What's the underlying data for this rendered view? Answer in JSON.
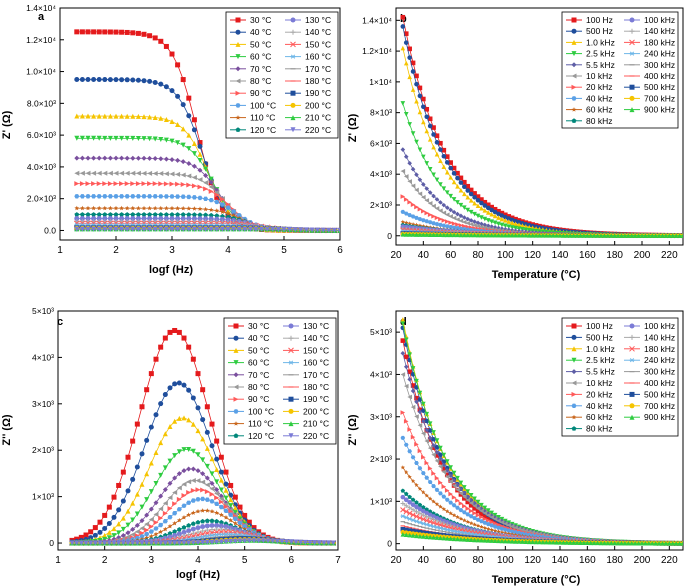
{
  "figure": {
    "panels": [
      {
        "label": "a",
        "xlabel": "logf (Hz)",
        "ylabel": "Z' (Ω)"
      },
      {
        "label": "b",
        "xlabel": "Temperature (°C)",
        "ylabel": "Z' (Ω)"
      },
      {
        "label": "c",
        "xlabel": "logf (Hz)",
        "ylabel": "Z'' (Ω)"
      },
      {
        "label": "d",
        "xlabel": "Temperature (°C)",
        "ylabel": "Z'' (Ω)"
      }
    ]
  },
  "chart_data": [
    {
      "type": "line",
      "panel": "a",
      "title": "a",
      "xlabel": "logf (Hz)",
      "ylabel": "Z' (Ω)",
      "xlim": [
        1,
        6
      ],
      "ylim": [
        -600,
        14000
      ],
      "xticks": [
        1,
        2,
        3,
        4,
        5,
        6
      ],
      "xtick_labels": [
        "1",
        "2",
        "3",
        "4",
        "5",
        "6"
      ],
      "yticks": [
        0,
        2000,
        4000,
        6000,
        8000,
        10000,
        12000,
        14000
      ],
      "ytick_labels": [
        "0.0",
        "2.0×10³",
        "4.0×10³",
        "6.0×10³",
        "8.0×10³",
        "1.0×10⁴",
        "1.2×10⁴",
        "1.4×10⁴"
      ],
      "legend_position": "top-right",
      "legend_cols": 2,
      "model": "Z' = Z0 / (1 + 10^(2·(logf − fc))) sampled from logf 1.3 to 6.0",
      "series": [
        {
          "name": "30 °C",
          "color": "#e41a1c",
          "marker": "square",
          "z0": 12500,
          "fc": 3.45
        },
        {
          "name": "40 °C",
          "color": "#1f4e9c",
          "marker": "circle",
          "z0": 9500,
          "fc": 3.55
        },
        {
          "name": "50 °C",
          "color": "#f5c400",
          "marker": "triangle",
          "z0": 7200,
          "fc": 3.65
        },
        {
          "name": "60 °C",
          "color": "#2ecc40",
          "marker": "tri-down",
          "z0": 5800,
          "fc": 3.75
        },
        {
          "name": "70 °C",
          "color": "#7a4f9e",
          "marker": "diamond",
          "z0": 4550,
          "fc": 3.85
        },
        {
          "name": "80 °C",
          "color": "#999999",
          "marker": "tri-left",
          "z0": 3600,
          "fc": 3.95
        },
        {
          "name": "90 °C",
          "color": "#ff5a5a",
          "marker": "tri-right",
          "z0": 2950,
          "fc": 4.05
        },
        {
          "name": "100 °C",
          "color": "#5aa0e6",
          "marker": "hexagon",
          "z0": 2150,
          "fc": 4.15
        },
        {
          "name": "110 °C",
          "color": "#c8651b",
          "marker": "star",
          "z0": 1400,
          "fc": 4.25
        },
        {
          "name": "120 °C",
          "color": "#00877a",
          "marker": "pentagon",
          "z0": 1000,
          "fc": 4.35
        },
        {
          "name": "130 °C",
          "color": "#7b7bd6",
          "marker": "circle",
          "z0": 750,
          "fc": 4.45
        },
        {
          "name": "140 °C",
          "color": "#aaaaaa",
          "marker": "plus",
          "z0": 560,
          "fc": 4.55
        },
        {
          "name": "150 °C",
          "color": "#ff5a5a",
          "marker": "cross",
          "z0": 450,
          "fc": 4.65
        },
        {
          "name": "160 °C",
          "color": "#6fb7e8",
          "marker": "asterisk",
          "z0": 350,
          "fc": 4.75
        },
        {
          "name": "170 °C",
          "color": "#999999",
          "marker": "line",
          "z0": 270,
          "fc": 4.85
        },
        {
          "name": "180 °C",
          "color": "#ff5a5a",
          "marker": "line",
          "z0": 210,
          "fc": 4.95
        },
        {
          "name": "190 °C",
          "color": "#1f4e9c",
          "marker": "square",
          "z0": 160,
          "fc": 5.05
        },
        {
          "name": "200 °C",
          "color": "#f5c400",
          "marker": "circle",
          "z0": 130,
          "fc": 5.15
        },
        {
          "name": "210 °C",
          "color": "#2ecc40",
          "marker": "triangle",
          "z0": 100,
          "fc": 5.25
        },
        {
          "name": "220 °C",
          "color": "#7b7bd6",
          "marker": "tri-down",
          "z0": 80,
          "fc": 5.35
        }
      ]
    },
    {
      "type": "line",
      "panel": "b",
      "title": "b",
      "xlabel": "Temperature (°C)",
      "ylabel": "Z' (Ω)",
      "xlim": [
        20,
        230
      ],
      "ylim": [
        -600,
        14800
      ],
      "xticks": [
        20,
        40,
        60,
        80,
        100,
        120,
        140,
        160,
        180,
        200,
        220
      ],
      "xtick_labels": [
        "20",
        "40",
        "60",
        "80",
        "100",
        "120",
        "140",
        "160",
        "180",
        "200",
        "220"
      ],
      "yticks": [
        0,
        2000,
        4000,
        6000,
        8000,
        10000,
        12000,
        14000
      ],
      "ytick_labels": [
        "0",
        "2×10³",
        "4×10³",
        "6×10³",
        "8×10³",
        "1×10⁴",
        "1.2×10⁴",
        "1.4×10⁴"
      ],
      "legend_position": "top-right",
      "legend_cols": 2,
      "model": "Z' = Z0 · exp(−(T − 25)/tau) sampled from T = 25 to 230",
      "series": [
        {
          "name": "100 Hz",
          "color": "#e41a1c",
          "marker": "square",
          "z0": 14200,
          "tau": 32
        },
        {
          "name": "500 Hz",
          "color": "#1f4e9c",
          "marker": "circle",
          "z0": 13600,
          "tau": 31
        },
        {
          "name": "1.0 kHz",
          "color": "#f5c400",
          "marker": "triangle",
          "z0": 12200,
          "tau": 30
        },
        {
          "name": "2.5 kHz",
          "color": "#2ecc40",
          "marker": "tri-down",
          "z0": 8600,
          "tau": 29
        },
        {
          "name": "5.5 kHz",
          "color": "#5e5ea6",
          "marker": "diamond",
          "z0": 5600,
          "tau": 29
        },
        {
          "name": "10 kHz",
          "color": "#999999",
          "marker": "tri-left",
          "z0": 4200,
          "tau": 29
        },
        {
          "name": "20 kHz",
          "color": "#ff5a5a",
          "marker": "tri-right",
          "z0": 2550,
          "tau": 32
        },
        {
          "name": "40 kHz",
          "color": "#5aa0e6",
          "marker": "hexagon",
          "z0": 1550,
          "tau": 35
        },
        {
          "name": "60 kHz",
          "color": "#c8651b",
          "marker": "star",
          "z0": 900,
          "tau": 40
        },
        {
          "name": "80 kHz",
          "color": "#00877a",
          "marker": "pentagon",
          "z0": 700,
          "tau": 45
        },
        {
          "name": "100 kHz",
          "color": "#7b7bd6",
          "marker": "circle",
          "z0": 600,
          "tau": 50
        },
        {
          "name": "140 kHz",
          "color": "#aaaaaa",
          "marker": "plus",
          "z0": 450,
          "tau": 55
        },
        {
          "name": "180 kHz",
          "color": "#ff5a5a",
          "marker": "cross",
          "z0": 380,
          "tau": 60
        },
        {
          "name": "240 kHz",
          "color": "#6fb7e8",
          "marker": "asterisk",
          "z0": 300,
          "tau": 65
        },
        {
          "name": "300 kHz",
          "color": "#999999",
          "marker": "line",
          "z0": 240,
          "tau": 70
        },
        {
          "name": "400 kHz",
          "color": "#ff5a5a",
          "marker": "line",
          "z0": 190,
          "tau": 75
        },
        {
          "name": "500 kHz",
          "color": "#1f4e9c",
          "marker": "square",
          "z0": 150,
          "tau": 80
        },
        {
          "name": "700 kHz",
          "color": "#f5c400",
          "marker": "circle",
          "z0": 110,
          "tau": 85
        },
        {
          "name": "900 kHz",
          "color": "#2ecc40",
          "marker": "triangle",
          "z0": 90,
          "tau": 90
        }
      ]
    },
    {
      "type": "line",
      "panel": "c",
      "title": "c",
      "xlabel": "logf (Hz)",
      "ylabel": "Z'' (Ω)",
      "xlim": [
        1,
        7
      ],
      "ylim": [
        -150,
        5000
      ],
      "xticks": [
        1,
        2,
        3,
        4,
        5,
        6,
        7
      ],
      "xtick_labels": [
        "1",
        "2",
        "3",
        "4",
        "5",
        "6",
        "7"
      ],
      "yticks": [
        0,
        1000,
        2000,
        3000,
        4000,
        5000
      ],
      "ytick_labels": [
        "0",
        "1×10³",
        "2×10³",
        "3×10³",
        "4×10³",
        "5×10³"
      ],
      "legend_position": "top-right",
      "legend_cols": 2,
      "model": "Z'' = peak · exp(−((logf − center)/width)²) sampled from logf 1.3 to 6.9",
      "series": [
        {
          "name": "30 °C",
          "color": "#e41a1c",
          "marker": "square",
          "peak": 4580,
          "center": 3.5,
          "width": 1.05
        },
        {
          "name": "40 °C",
          "color": "#1f4e9c",
          "marker": "circle",
          "peak": 3450,
          "center": 3.58,
          "width": 1.02
        },
        {
          "name": "50 °C",
          "color": "#f5c400",
          "marker": "triangle",
          "peak": 2700,
          "center": 3.67,
          "width": 1.0
        },
        {
          "name": "60 °C",
          "color": "#2ecc40",
          "marker": "tri-down",
          "peak": 2020,
          "center": 3.76,
          "width": 0.98
        },
        {
          "name": "70 °C",
          "color": "#7a4f9e",
          "marker": "diamond",
          "peak": 1600,
          "center": 3.85,
          "width": 0.96
        },
        {
          "name": "80 °C",
          "color": "#999999",
          "marker": "tri-left",
          "peak": 1350,
          "center": 3.94,
          "width": 0.95
        },
        {
          "name": "90 °C",
          "color": "#ff5a5a",
          "marker": "tri-right",
          "peak": 1150,
          "center": 4.02,
          "width": 0.94
        },
        {
          "name": "100 °C",
          "color": "#5aa0e6",
          "marker": "hexagon",
          "peak": 950,
          "center": 4.08,
          "width": 0.93
        },
        {
          "name": "110 °C",
          "color": "#c8651b",
          "marker": "star",
          "peak": 700,
          "center": 4.15,
          "width": 0.92
        },
        {
          "name": "120 °C",
          "color": "#00877a",
          "marker": "pentagon",
          "peak": 480,
          "center": 4.25,
          "width": 0.92
        },
        {
          "name": "130 °C",
          "color": "#7b7bd6",
          "marker": "circle",
          "peak": 380,
          "center": 4.35,
          "width": 0.92
        },
        {
          "name": "140 °C",
          "color": "#aaaaaa",
          "marker": "plus",
          "peak": 300,
          "center": 4.45,
          "width": 0.92
        },
        {
          "name": "150 °C",
          "color": "#ff5a5a",
          "marker": "cross",
          "peak": 240,
          "center": 4.55,
          "width": 0.92
        },
        {
          "name": "160 °C",
          "color": "#6fb7e8",
          "marker": "asterisk",
          "peak": 190,
          "center": 4.65,
          "width": 0.92
        },
        {
          "name": "170 °C",
          "color": "#999999",
          "marker": "line",
          "peak": 150,
          "center": 4.75,
          "width": 0.92
        },
        {
          "name": "180 °C",
          "color": "#ff5a5a",
          "marker": "line",
          "peak": 120,
          "center": 4.85,
          "width": 0.92
        },
        {
          "name": "190 °C",
          "color": "#1f4e9c",
          "marker": "square",
          "peak": 95,
          "center": 4.95,
          "width": 0.92
        },
        {
          "name": "200 °C",
          "color": "#f5c400",
          "marker": "circle",
          "peak": 75,
          "center": 5.05,
          "width": 0.92
        },
        {
          "name": "210 °C",
          "color": "#2ecc40",
          "marker": "triangle",
          "peak": 60,
          "center": 5.15,
          "width": 0.92
        },
        {
          "name": "220 °C",
          "color": "#7b7bd6",
          "marker": "tri-down",
          "peak": 50,
          "center": 5.25,
          "width": 0.92
        }
      ]
    },
    {
      "type": "line",
      "panel": "d",
      "title": "d",
      "xlabel": "Temperature (°C)",
      "ylabel": "Z'' (Ω)",
      "xlim": [
        20,
        230
      ],
      "ylim": [
        -150,
        5500
      ],
      "xticks": [
        20,
        40,
        60,
        80,
        100,
        120,
        140,
        160,
        180,
        200,
        220
      ],
      "xtick_labels": [
        "20",
        "40",
        "60",
        "80",
        "100",
        "120",
        "140",
        "160",
        "180",
        "200",
        "220"
      ],
      "yticks": [
        0,
        1000,
        2000,
        3000,
        4000,
        5000
      ],
      "ytick_labels": [
        "0",
        "1×10³",
        "2×10³",
        "3×10³",
        "4×10³",
        "5×10³"
      ],
      "legend_position": "top-right",
      "legend_cols": 2,
      "model": "Z'' = Z0 · exp(−(T − 25)/tau) sampled from T = 25 to 230",
      "series": [
        {
          "name": "100 Hz",
          "color": "#e41a1c",
          "marker": "square",
          "z0": 4800,
          "tau": 30
        },
        {
          "name": "500 Hz",
          "color": "#1f4e9c",
          "marker": "circle",
          "z0": 5100,
          "tau": 31
        },
        {
          "name": "1.0 kHz",
          "color": "#f5c400",
          "marker": "triangle",
          "z0": 5300,
          "tau": 32
        },
        {
          "name": "2.5 kHz",
          "color": "#2ecc40",
          "marker": "tri-down",
          "z0": 5200,
          "tau": 33
        },
        {
          "name": "5.5 kHz",
          "color": "#5e5ea6",
          "marker": "diamond",
          "z0": 4500,
          "tau": 34
        },
        {
          "name": "10 kHz",
          "color": "#999999",
          "marker": "tri-left",
          "z0": 4000,
          "tau": 35
        },
        {
          "name": "20 kHz",
          "color": "#ff5a5a",
          "marker": "tri-right",
          "z0": 3100,
          "tau": 36
        },
        {
          "name": "40 kHz",
          "color": "#5aa0e6",
          "marker": "hexagon",
          "z0": 2500,
          "tau": 37
        },
        {
          "name": "60 kHz",
          "color": "#c8651b",
          "marker": "star",
          "z0": 1800,
          "tau": 38
        },
        {
          "name": "80 kHz",
          "color": "#00877a",
          "marker": "pentagon",
          "z0": 1250,
          "tau": 40
        },
        {
          "name": "100 kHz",
          "color": "#7b7bd6",
          "marker": "circle",
          "z0": 1100,
          "tau": 42
        },
        {
          "name": "140 kHz",
          "color": "#aaaaaa",
          "marker": "plus",
          "z0": 950,
          "tau": 44
        },
        {
          "name": "180 kHz",
          "color": "#ff5a5a",
          "marker": "cross",
          "z0": 800,
          "tau": 46
        },
        {
          "name": "240 kHz",
          "color": "#6fb7e8",
          "marker": "asterisk",
          "z0": 650,
          "tau": 48
        },
        {
          "name": "300 kHz",
          "color": "#999999",
          "marker": "line",
          "z0": 520,
          "tau": 50
        },
        {
          "name": "400 kHz",
          "color": "#ff5a5a",
          "marker": "line",
          "z0": 420,
          "tau": 52
        },
        {
          "name": "500 kHz",
          "color": "#1f4e9c",
          "marker": "square",
          "z0": 340,
          "tau": 54
        },
        {
          "name": "700 kHz",
          "color": "#f5c400",
          "marker": "circle",
          "z0": 270,
          "tau": 56
        },
        {
          "name": "900 kHz",
          "color": "#2ecc40",
          "marker": "triangle",
          "z0": 220,
          "tau": 58
        }
      ]
    }
  ]
}
